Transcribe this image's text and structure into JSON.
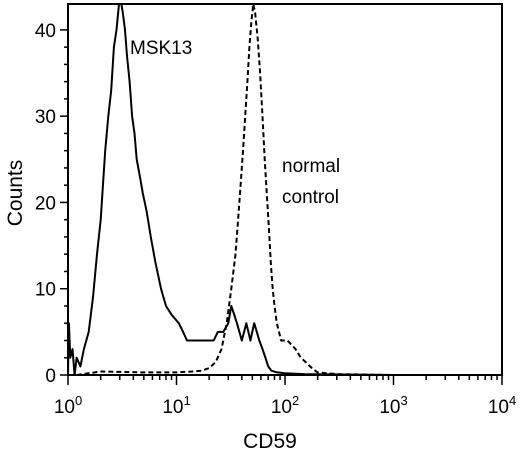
{
  "chart_data": {
    "type": "line",
    "xlabel": "CD59",
    "ylabel": "Counts",
    "x_scale": "log",
    "xlim": [
      1,
      10000
    ],
    "ylim": [
      0,
      43
    ],
    "x_ticks": [
      {
        "value": 1,
        "base": "10",
        "exp": "0"
      },
      {
        "value": 10,
        "base": "10",
        "exp": "1"
      },
      {
        "value": 100,
        "base": "10",
        "exp": "2"
      },
      {
        "value": 1000,
        "base": "10",
        "exp": "3"
      },
      {
        "value": 10000,
        "base": "10",
        "exp": "4"
      }
    ],
    "y_ticks": [
      {
        "value": 0,
        "label": "0"
      },
      {
        "value": 10,
        "label": "10"
      },
      {
        "value": 20,
        "label": "20"
      },
      {
        "value": 30,
        "label": "30"
      },
      {
        "value": 40,
        "label": "40"
      }
    ],
    "annotations": {
      "msk13": "MSK13",
      "normal_line1": "normal",
      "normal_line2": "control"
    },
    "series": [
      {
        "style": "solid",
        "color": "#000000",
        "points": [
          [
            1.0,
            0
          ],
          [
            1.02,
            6
          ],
          [
            1.05,
            2
          ],
          [
            1.1,
            3
          ],
          [
            1.15,
            0
          ],
          [
            1.2,
            2
          ],
          [
            1.3,
            1
          ],
          [
            1.4,
            3
          ],
          [
            1.55,
            5
          ],
          [
            1.7,
            9
          ],
          [
            1.85,
            14
          ],
          [
            2.0,
            18
          ],
          [
            2.2,
            26
          ],
          [
            2.35,
            30
          ],
          [
            2.5,
            33
          ],
          [
            2.65,
            38
          ],
          [
            2.8,
            40
          ],
          [
            2.95,
            43
          ],
          [
            3.1,
            43
          ],
          [
            3.2,
            42
          ],
          [
            3.35,
            40
          ],
          [
            3.5,
            37
          ],
          [
            3.7,
            34
          ],
          [
            3.9,
            30
          ],
          [
            4.1,
            28
          ],
          [
            4.3,
            25
          ],
          [
            4.6,
            23
          ],
          [
            4.9,
            21
          ],
          [
            5.3,
            19
          ],
          [
            5.8,
            16
          ],
          [
            6.4,
            13
          ],
          [
            7.2,
            10
          ],
          [
            8.0,
            8
          ],
          [
            9.0,
            7
          ],
          [
            10.5,
            6
          ],
          [
            11.5,
            5
          ],
          [
            12.5,
            4
          ],
          [
            15,
            4
          ],
          [
            18,
            4
          ],
          [
            20,
            4
          ],
          [
            22,
            4
          ],
          [
            24,
            5
          ],
          [
            27,
            5
          ],
          [
            30,
            6
          ],
          [
            32,
            8
          ],
          [
            34,
            7
          ],
          [
            36,
            6
          ],
          [
            38,
            5
          ],
          [
            40,
            4
          ],
          [
            42,
            5
          ],
          [
            44,
            6
          ],
          [
            46,
            5
          ],
          [
            48,
            4
          ],
          [
            50,
            5
          ],
          [
            52,
            6
          ],
          [
            55,
            5
          ],
          [
            58,
            4
          ],
          [
            62,
            3
          ],
          [
            66,
            2
          ],
          [
            70,
            1
          ],
          [
            75,
            0.5
          ],
          [
            85,
            0.3
          ],
          [
            100,
            0.2
          ],
          [
            150,
            0.1
          ],
          [
            1000,
            0
          ],
          [
            10000,
            0
          ]
        ]
      },
      {
        "style": "dashed",
        "color": "#000000",
        "points": [
          [
            1.2,
            0
          ],
          [
            2,
            0.4
          ],
          [
            5,
            0.3
          ],
          [
            10,
            0.3
          ],
          [
            14,
            0.4
          ],
          [
            17,
            0.5
          ],
          [
            20,
            0.8
          ],
          [
            23,
            1.5
          ],
          [
            26,
            3
          ],
          [
            29,
            6
          ],
          [
            32,
            10
          ],
          [
            35,
            14
          ],
          [
            37,
            18
          ],
          [
            39,
            22
          ],
          [
            41,
            26
          ],
          [
            43,
            30
          ],
          [
            45,
            34
          ],
          [
            47,
            38
          ],
          [
            49,
            41
          ],
          [
            51,
            43
          ],
          [
            53,
            42
          ],
          [
            56,
            39
          ],
          [
            59,
            35
          ],
          [
            62,
            30
          ],
          [
            65,
            25
          ],
          [
            68,
            21
          ],
          [
            71,
            17
          ],
          [
            74,
            13
          ],
          [
            77,
            10
          ],
          [
            80,
            8
          ],
          [
            84,
            6
          ],
          [
            88,
            5
          ],
          [
            92,
            4
          ],
          [
            98,
            4
          ],
          [
            105,
            4
          ],
          [
            115,
            3.5
          ],
          [
            125,
            3
          ],
          [
            140,
            2
          ],
          [
            155,
            1.5
          ],
          [
            170,
            1
          ],
          [
            185,
            0.6
          ],
          [
            200,
            0.3
          ],
          [
            300,
            0.1
          ],
          [
            1000,
            0
          ],
          [
            10000,
            0
          ]
        ]
      }
    ]
  }
}
